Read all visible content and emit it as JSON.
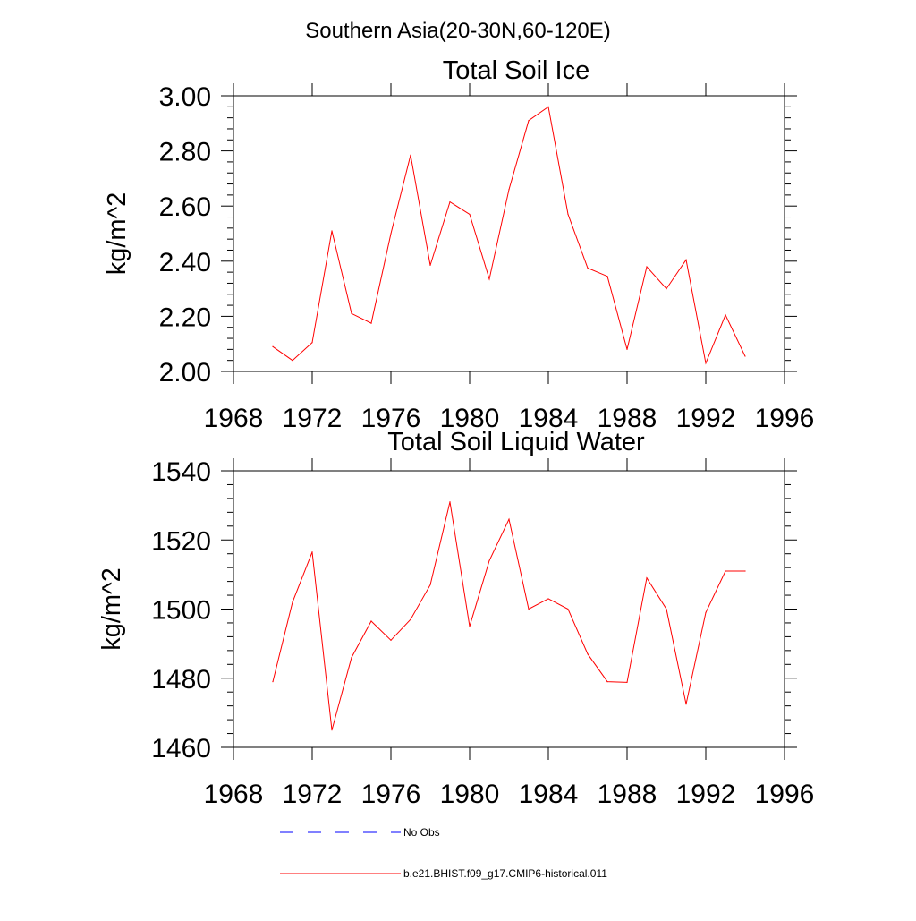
{
  "figure": {
    "suptitle": "Southern Asia(20-30N,60-120E)"
  },
  "legend": [
    {
      "label": "No Obs",
      "color": "#0000ff",
      "style": "dashed"
    },
    {
      "label": "b.e21.BHIST.f09_g17.CMIP6-historical.011",
      "color": "#ff0000",
      "style": "solid"
    }
  ],
  "chart_data": [
    {
      "type": "line",
      "title": "Total Soil Ice",
      "xlabel": "",
      "ylabel": "kg/m^2",
      "xlim": [
        1968,
        1996
      ],
      "ylim": [
        2.0,
        3.0
      ],
      "xticks": [
        1968,
        1972,
        1976,
        1980,
        1984,
        1988,
        1992,
        1996
      ],
      "xtick_labels": [
        "1968",
        "1972",
        "1976",
        "1980",
        "1984",
        "1988",
        "1992",
        "1996"
      ],
      "yticks": [
        2.0,
        2.2,
        2.4,
        2.6,
        2.8,
        3.0
      ],
      "ytick_labels": [
        "2.00",
        "2.20",
        "2.40",
        "2.60",
        "2.80",
        "3.00"
      ],
      "grid": false,
      "x": [
        1970,
        1971,
        1972,
        1973,
        1974,
        1975,
        1976,
        1977,
        1978,
        1979,
        1980,
        1981,
        1982,
        1983,
        1984,
        1985,
        1986,
        1987,
        1988,
        1989,
        1990,
        1991,
        1992,
        1993,
        1994
      ],
      "series": [
        {
          "name": "b.e21.BHIST.f09_g17.CMIP6-historical.011",
          "color": "#ff0000",
          "values": [
            2.09,
            2.04,
            2.105,
            2.51,
            2.21,
            2.175,
            2.5,
            2.785,
            2.385,
            2.615,
            2.57,
            2.335,
            2.66,
            2.91,
            2.96,
            2.57,
            2.375,
            2.345,
            2.08,
            2.38,
            2.3,
            2.405,
            2.03,
            2.205,
            2.055
          ]
        }
      ]
    },
    {
      "type": "line",
      "title": "Total Soil Liquid Water",
      "xlabel": "",
      "ylabel": "kg/m^2",
      "xlim": [
        1968,
        1996
      ],
      "ylim": [
        1460,
        1540
      ],
      "xticks": [
        1968,
        1972,
        1976,
        1980,
        1984,
        1988,
        1992,
        1996
      ],
      "xtick_labels": [
        "1968",
        "1972",
        "1976",
        "1980",
        "1984",
        "1988",
        "1992",
        "1996"
      ],
      "yticks": [
        1460,
        1480,
        1500,
        1520,
        1540
      ],
      "ytick_labels": [
        "1460",
        "1480",
        "1500",
        "1520",
        "1540"
      ],
      "grid": false,
      "x": [
        1970,
        1971,
        1972,
        1973,
        1974,
        1975,
        1976,
        1977,
        1978,
        1979,
        1980,
        1981,
        1982,
        1983,
        1984,
        1985,
        1986,
        1987,
        1988,
        1989,
        1990,
        1991,
        1992,
        1993,
        1994
      ],
      "series": [
        {
          "name": "b.e21.BHIST.f09_g17.CMIP6-historical.011",
          "color": "#ff0000",
          "values": [
            1479,
            1502,
            1516.5,
            1465,
            1486,
            1496.5,
            1491,
            1497,
            1507,
            1531,
            1495,
            1514,
            1526,
            1500,
            1503,
            1500,
            1487,
            1479,
            1478.8,
            1509,
            1500,
            1472.5,
            1499,
            1511,
            1511
          ]
        }
      ]
    }
  ]
}
